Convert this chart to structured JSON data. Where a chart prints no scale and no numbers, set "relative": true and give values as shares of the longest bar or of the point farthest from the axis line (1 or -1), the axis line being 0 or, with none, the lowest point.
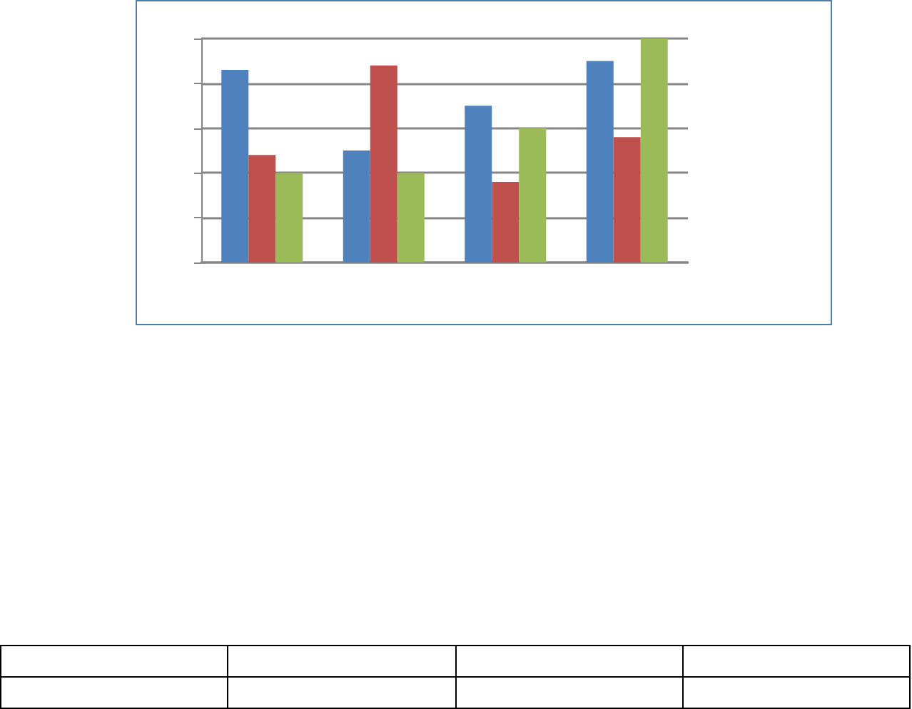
{
  "chart_data": {
    "type": "bar",
    "relative": true,
    "categories": [
      null,
      null,
      null,
      null
    ],
    "series": [
      {
        "color": "#4f81bd",
        "values": [
          0.86,
          0.5,
          0.7,
          0.9
        ]
      },
      {
        "color": "#c0504d",
        "values": [
          0.48,
          0.88,
          0.36,
          0.56
        ]
      },
      {
        "color": "#9bbb59",
        "values": [
          0.4,
          0.4,
          0.6,
          1
        ]
      }
    ],
    "grid": true
  }
}
